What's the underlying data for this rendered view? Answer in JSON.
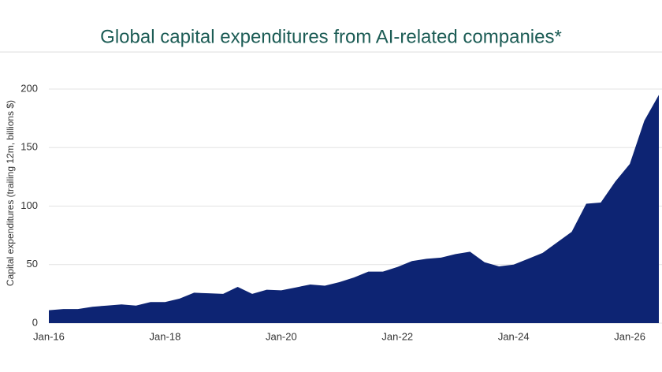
{
  "chart_data": {
    "type": "area",
    "title": "Global capital expenditures from AI-related companies*",
    "ylabel": "Capital expenditures (trailing 12m, billions $)",
    "categories": [
      "Jan-16",
      null,
      null,
      null,
      null,
      null,
      null,
      null,
      "Jan-18",
      null,
      null,
      null,
      null,
      null,
      null,
      null,
      "Jan-20",
      null,
      null,
      null,
      null,
      null,
      null,
      null,
      "Jan-22",
      null,
      null,
      null,
      null,
      null,
      null,
      null,
      "Jan-24",
      null,
      null,
      null,
      null,
      null,
      null,
      null,
      "Jan-26",
      null,
      null
    ],
    "values": [
      11,
      12,
      12,
      14,
      15,
      16,
      15,
      18,
      18,
      21,
      26,
      25.5,
      25,
      31,
      25,
      28.5,
      28,
      30.5,
      33,
      32,
      35,
      39,
      44,
      44,
      48,
      53,
      55,
      56,
      59,
      61,
      52,
      48.5,
      50,
      55,
      60,
      69,
      78,
      102,
      103,
      121,
      136,
      173,
      195
    ],
    "color": "#0d2473",
    "ylim": [
      0,
      200
    ],
    "yticks": [
      0,
      50,
      100,
      150,
      200
    ],
    "grid": true
  }
}
